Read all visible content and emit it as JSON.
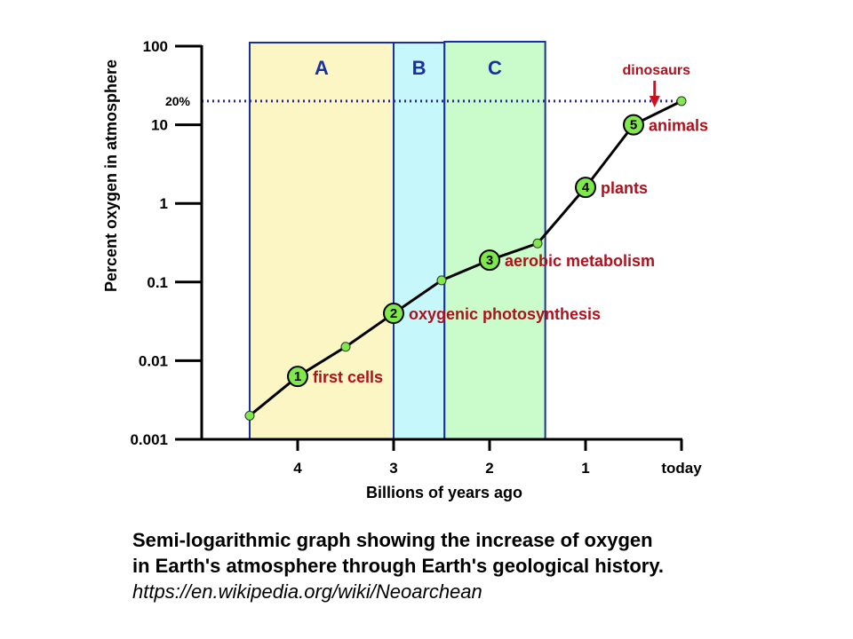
{
  "chart_data": {
    "type": "line",
    "title": "",
    "xlabel": "Billions of years ago",
    "ylabel": "Percent oxygen in atmosphere",
    "y_scale": "log",
    "ylim": [
      0.001,
      100
    ],
    "xlim": [
      5,
      0
    ],
    "x_ticks": [
      {
        "value": 4,
        "label": "4"
      },
      {
        "value": 3,
        "label": "3"
      },
      {
        "value": 2,
        "label": "2"
      },
      {
        "value": 1,
        "label": "1"
      },
      {
        "value": 0,
        "label": "today"
      }
    ],
    "y_ticks": [
      {
        "value": 100,
        "label": "100"
      },
      {
        "value": 10,
        "label": "10"
      },
      {
        "value": 1,
        "label": "1"
      },
      {
        "value": 0.1,
        "label": "0.1"
      },
      {
        "value": 0.01,
        "label": "0.01"
      },
      {
        "value": 0.001,
        "label": "0.001"
      }
    ],
    "series": [
      {
        "color": "#000000",
        "marker_color": "#7fe84a",
        "points": [
          {
            "x": 4.5,
            "y": 0.002
          },
          {
            "x": 4.0,
            "y": 0.0063
          },
          {
            "x": 3.5,
            "y": 0.015
          },
          {
            "x": 3.0,
            "y": 0.04
          },
          {
            "x": 2.5,
            "y": 0.105
          },
          {
            "x": 2.0,
            "y": 0.19
          },
          {
            "x": 1.5,
            "y": 0.31
          },
          {
            "x": 1.0,
            "y": 1.6
          },
          {
            "x": 0.5,
            "y": 10
          },
          {
            "x": 0.0,
            "y": 20
          }
        ]
      }
    ],
    "bands": [
      {
        "label": "A",
        "x_start": 4.5,
        "x_end": 3.0,
        "fill": "#fbf6c3",
        "border": "#1a2fa0"
      },
      {
        "label": "B",
        "x_start": 3.0,
        "x_end": 2.47,
        "fill": "#c6f8fb",
        "border": "#1a2fa0"
      },
      {
        "label": "C",
        "x_start": 2.47,
        "x_end": 1.42,
        "fill": "#cafbcb",
        "border": "#1a2fa0"
      }
    ],
    "reference_line": {
      "label": "20%",
      "y": 20,
      "color": "#2a2aa0"
    },
    "events": [
      {
        "number": "1",
        "label": "first cells",
        "x": 4.0,
        "y": 0.0063
      },
      {
        "number": "2",
        "label": "oxygenic photosynthesis",
        "x": 3.0,
        "y": 0.04
      },
      {
        "number": "3",
        "label": "aerobic metabolism",
        "x": 2.0,
        "y": 0.19
      },
      {
        "number": "4",
        "label": "plants",
        "x": 1.0,
        "y": 1.6
      },
      {
        "number": "5",
        "label": "animals",
        "x": 0.5,
        "y": 10
      }
    ],
    "callout": {
      "label": "dinosaurs",
      "x": 0.28,
      "color": "#cc1020"
    },
    "grid": false,
    "legend": "none"
  },
  "caption": {
    "line1": "Semi-logarithmic graph showing the increase of oxygen",
    "line2": "in Earth's atmosphere through Earth's geological history.",
    "source": "https://en.wikipedia.org/wiki/Neoarchean"
  }
}
